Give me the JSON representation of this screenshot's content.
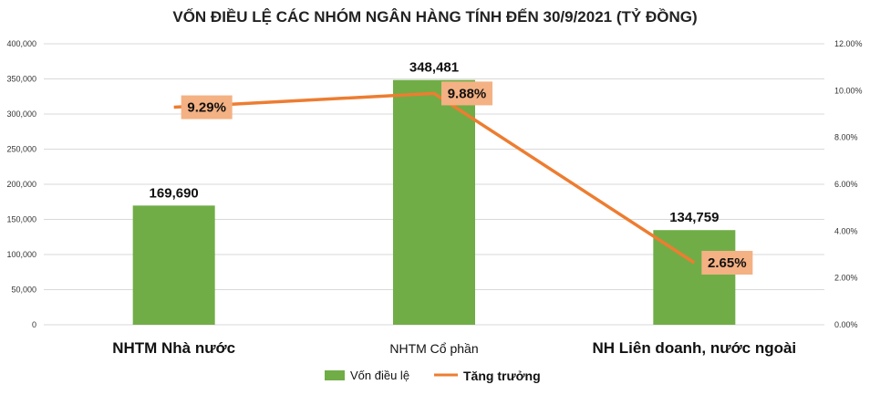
{
  "chart_data": {
    "type": "bar",
    "title": "VỐN ĐIỀU LỆ CÁC NHÓM NGÂN HÀNG TÍNH ĐẾN 30/9/2021 (TỶ ĐỒNG)",
    "categories": [
      "NHTM Nhà nước",
      "NHTM Cổ phần",
      "NH Liên doanh, nước ngoài"
    ],
    "series": [
      {
        "name": "Vốn điều lệ",
        "type": "bar",
        "axis": "left",
        "values": [
          169690,
          348481,
          134759
        ],
        "labels": [
          "169,690",
          "348,481",
          "134,759"
        ],
        "color": "#70AD47"
      },
      {
        "name": "Tăng trưởng",
        "type": "line",
        "axis": "right",
        "values": [
          9.29,
          9.88,
          2.65
        ],
        "labels": [
          "9.29%",
          "9.88%",
          "2.65%"
        ],
        "color": "#ED7D31",
        "label_bg": "#F4B183"
      }
    ],
    "y_left": {
      "range": [
        0,
        400000
      ],
      "ticks": [
        "0",
        "50,000",
        "100,000",
        "150,000",
        "200,000",
        "250,000",
        "300,000",
        "350,000",
        "400,000"
      ]
    },
    "y_right": {
      "range": [
        0,
        12
      ],
      "ticks": [
        "0.00%",
        "2.00%",
        "4.00%",
        "6.00%",
        "8.00%",
        "10.00%",
        "12.00%"
      ]
    },
    "grid": true,
    "legend": "bottom"
  }
}
